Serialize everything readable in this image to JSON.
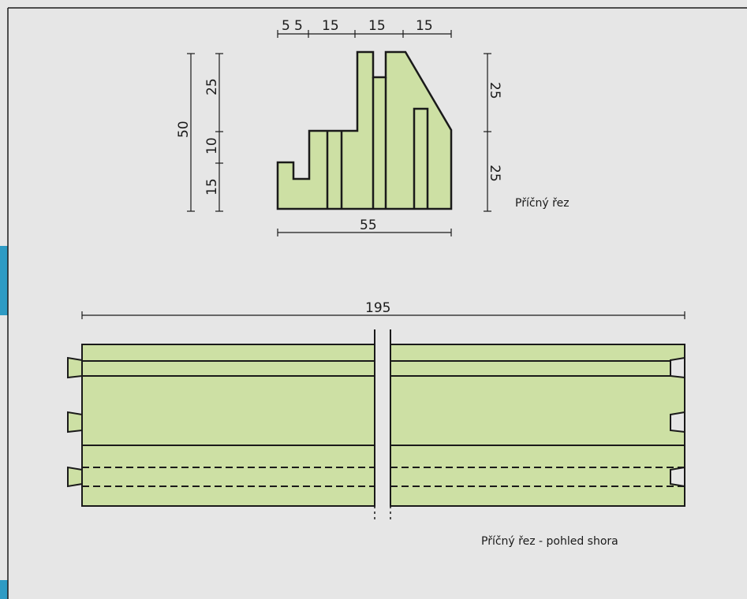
{
  "colors": {
    "background": "#e6e6e6",
    "fill": "#cde0a4",
    "stroke": "#1a1a1a",
    "side_tab": "#2e9bc4"
  },
  "cross_section": {
    "caption": "Příčný řez",
    "top_dims": [
      "5",
      "5",
      "15",
      "15",
      "15"
    ],
    "left_total": "50",
    "left_dims": [
      "25",
      "10",
      "15"
    ],
    "right_dims": [
      "25",
      "25"
    ],
    "bottom_dim": "55"
  },
  "top_view": {
    "caption": "Příčný řez - pohled shora",
    "length_dim": "195"
  }
}
